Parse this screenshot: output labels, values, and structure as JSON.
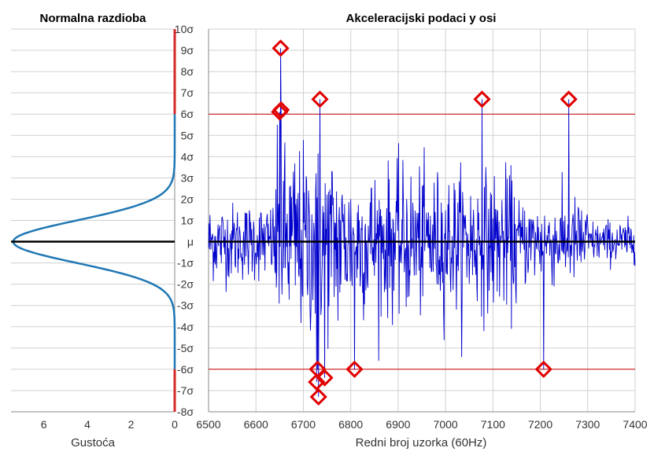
{
  "chart_data": [
    {
      "type": "line",
      "title": "Normalna razdioba",
      "xlabel": "Gustoća",
      "ylabel": "",
      "xlim": [
        0,
        7.5
      ],
      "x_reversed": true,
      "ylim": [
        -8,
        10
      ],
      "x_ticks": [
        "6",
        "4",
        "2",
        "0"
      ],
      "y_ticks": [
        "10σ",
        "9σ",
        "8σ",
        "7σ",
        "6σ",
        "5σ",
        "4σ",
        "3σ",
        "2σ",
        "1σ",
        "μ",
        "-1σ",
        "-2σ",
        "-3σ",
        "-4σ",
        "-5σ",
        "-6σ",
        "-7σ",
        "-8σ"
      ],
      "density_peak": 7.4,
      "colors": {
        "curve": "#1f77b4",
        "threshold_band": "#d62728",
        "mean_line": "#000000"
      }
    },
    {
      "type": "line",
      "title": "Akceleracijski podaci y osi",
      "xlabel": "Redni broj uzorka (60Hz)",
      "ylabel": "",
      "xlim": [
        6500,
        7400
      ],
      "ylim": [
        -8,
        10
      ],
      "x_ticks": [
        "6500",
        "6600",
        "6700",
        "6800",
        "6900",
        "7000",
        "7100",
        "7200",
        "7300",
        "7400"
      ],
      "thresholds": [
        6,
        -6
      ],
      "outliers": [
        {
          "x": 6652,
          "y": 9.1
        },
        {
          "x": 6650,
          "y": 6.1
        },
        {
          "x": 6653,
          "y": 6.2
        },
        {
          "x": 6735,
          "y": 6.7
        },
        {
          "x": 7077,
          "y": 6.7
        },
        {
          "x": 7260,
          "y": 6.7
        },
        {
          "x": 6730,
          "y": -6.0
        },
        {
          "x": 6728,
          "y": -6.6
        },
        {
          "x": 6745,
          "y": -6.4
        },
        {
          "x": 6808,
          "y": -6.0
        },
        {
          "x": 7207,
          "y": -6.0
        },
        {
          "x": 6732,
          "y": -7.3
        }
      ],
      "series": [
        {
          "values_x_range": [
            6500,
            7400
          ],
          "sample_count": 900
        }
      ],
      "colors": {
        "signal": "#0000cc",
        "threshold": "#cc0000",
        "marker": "#e00000",
        "mean_line": "#000000"
      }
    }
  ]
}
